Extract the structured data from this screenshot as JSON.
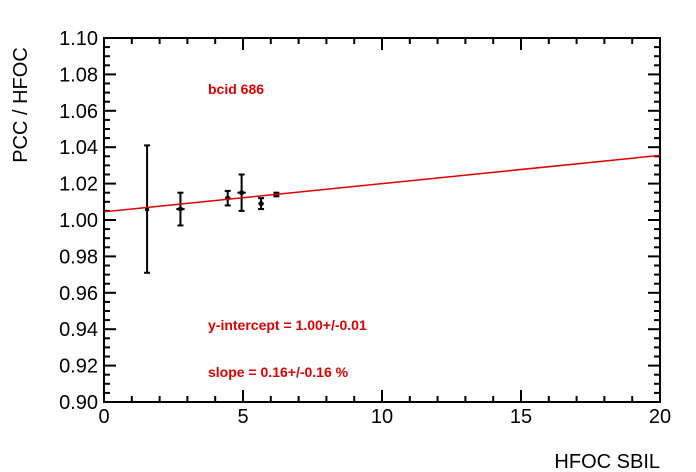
{
  "chart_data": {
    "type": "scatter",
    "xlabel": "HFOC  SBIL",
    "ylabel": "PCC / HFOC",
    "xlim": [
      0,
      20
    ],
    "ylim": [
      0.9,
      1.1
    ],
    "x_ticks": [
      "0",
      "5",
      "10",
      "15",
      "20"
    ],
    "y_ticks": [
      "0.90",
      "0.92",
      "0.94",
      "0.96",
      "0.98",
      "1.00",
      "1.02",
      "1.04",
      "1.06",
      "1.08",
      "1.10"
    ],
    "grid": false,
    "points": [
      {
        "x": 1.55,
        "y": 1.006,
        "yerr": 0.035,
        "xerr": 0.0
      },
      {
        "x": 2.75,
        "y": 1.006,
        "yerr": 0.009,
        "xerr": 0.15
      },
      {
        "x": 4.45,
        "y": 1.012,
        "yerr": 0.004,
        "xerr": 0.1
      },
      {
        "x": 4.95,
        "y": 1.015,
        "yerr": 0.01,
        "xerr": 0.15
      },
      {
        "x": 5.65,
        "y": 1.009,
        "yerr": 0.003,
        "xerr": 0.1
      },
      {
        "x": 6.2,
        "y": 1.014,
        "yerr": 0.001,
        "xerr": 0.1
      }
    ],
    "fit_line": {
      "x": [
        0,
        20
      ],
      "y": [
        1.0045,
        1.0355
      ],
      "color": "#e00000"
    },
    "annotations": {
      "bcid": "bcid 686",
      "intercept": "y-intercept = 1.00+/-0.01",
      "slope": "slope = 0.16+/-0.16 %"
    },
    "colors": {
      "points": "#000000",
      "fit": "#e00000",
      "annotations": "#e00000"
    }
  }
}
